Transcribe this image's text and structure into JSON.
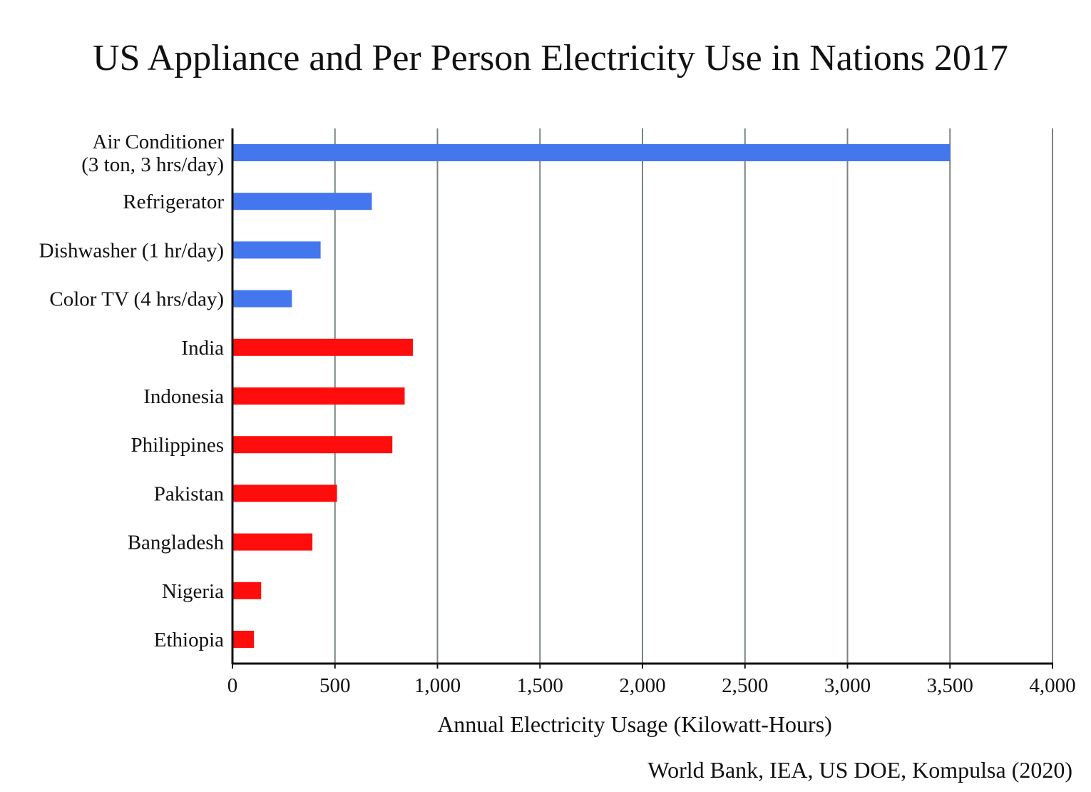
{
  "chart_data": {
    "type": "bar",
    "orientation": "horizontal",
    "title": "US Appliance and Per Person Electricity Use in Nations 2017",
    "xlabel": "Annual Electricity Usage (Kilowatt-Hours)",
    "source": "World Bank, IEA, US DOE, Kompulsa (2020)",
    "xlim": [
      0,
      4000
    ],
    "x_ticks": [
      0,
      500,
      1000,
      1500,
      2000,
      2500,
      3000,
      3500,
      4000
    ],
    "x_tick_labels": [
      "0",
      "500",
      "1,000",
      "1,500",
      "2,000",
      "2,500",
      "3,000",
      "3,500",
      "4,000"
    ],
    "grid": "vertical",
    "categories": [
      [
        "Air Conditioner",
        "(3 ton, 3 hrs/day)"
      ],
      [
        "Refrigerator"
      ],
      [
        "Dishwasher (1 hr/day)"
      ],
      [
        "Color TV (4 hrs/day)"
      ],
      [
        "India"
      ],
      [
        "Indonesia"
      ],
      [
        "Philippines"
      ],
      [
        "Pakistan"
      ],
      [
        "Bangladesh"
      ],
      [
        "Nigeria"
      ],
      [
        "Ethiopia"
      ]
    ],
    "values": [
      3500,
      680,
      430,
      290,
      880,
      840,
      780,
      510,
      390,
      140,
      105
    ],
    "bar_colors": [
      "#4477ee",
      "#4477ee",
      "#4477ee",
      "#4477ee",
      "#ff0d0d",
      "#ff0d0d",
      "#ff0d0d",
      "#ff0d0d",
      "#ff0d0d",
      "#ff0d0d",
      "#ff0d0d"
    ],
    "grid_color": "#7a8580",
    "axis_color": "#111111"
  }
}
